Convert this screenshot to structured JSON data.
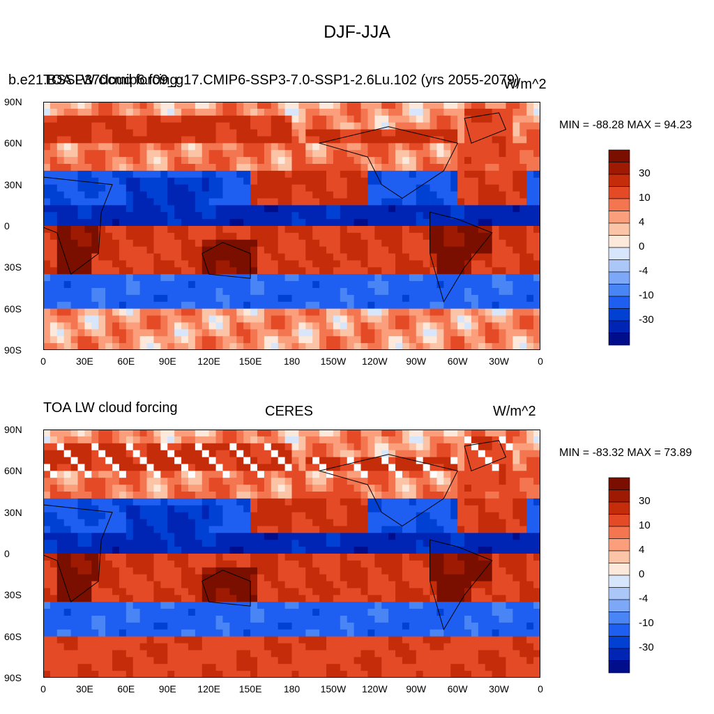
{
  "page_title": "DJF-JJA",
  "panels": [
    {
      "left_title": "b.e21.BSSP370cmip6.f09_g17.CMIP6-SSP3-7.0-SSP1-2.6Lu.102 (yrs 2055-2079)",
      "left_title_overlap": "TOA LW cloud forcing",
      "center_title": "",
      "units": "W/m^2",
      "stats": "MIN = -88.28 MAX =  94.23"
    },
    {
      "left_title": "TOA LW cloud forcing",
      "center_title": "CERES",
      "units": "W/m^2",
      "stats": "MIN = -83.32 MAX =  73.89"
    }
  ],
  "colors": {
    "palette": [
      "#000e8c",
      "#0024b4",
      "#0041d4",
      "#1e5ef0",
      "#4a85f5",
      "#7da8f8",
      "#abc7f8",
      "#d8e6fb",
      "#fde8dc",
      "#fcc4a7",
      "#fb9e7c",
      "#f37650",
      "#e44a26",
      "#c52c0a",
      "#9e1a03",
      "#7a0f00"
    ],
    "missing": "#ffffff"
  },
  "chart_data": [
    {
      "type": "heatmap",
      "title": "b.e21.BSSP370cmip6.f09_g17.CMIP6-SSP3-7.0-SSP1-2.6Lu.102 (yrs 2055-2079)",
      "variable": "TOA LW cloud forcing",
      "units": "W/m^2",
      "season_difference": "DJF-JJA",
      "x_ticks": [
        "0",
        "30E",
        "60E",
        "90E",
        "120E",
        "150E",
        "180",
        "150W",
        "120W",
        "90W",
        "60W",
        "30W",
        "0"
      ],
      "y_ticks": [
        "90N",
        "60N",
        "30N",
        "0",
        "30S",
        "60S",
        "90S"
      ],
      "xlim": [
        0,
        360
      ],
      "ylim": [
        -90,
        90
      ],
      "colorbar_levels": [
        "30",
        "10",
        "4",
        "0",
        "-4",
        "-10",
        "-30"
      ],
      "min": -88.28,
      "max": 94.23,
      "zonal_bands_approx": [
        {
          "lat_range": [
            60,
            90
          ],
          "sign": "positive (Eurasia/N. America land)"
        },
        {
          "lat_range": [
            15,
            60
          ],
          "sign": "negative over ocean, positive N. Pacific/N. Atlantic"
        },
        {
          "lat_range": [
            0,
            15
          ],
          "sign": "strongly negative (ITCZ)"
        },
        {
          "lat_range": [
            -40,
            0
          ],
          "sign": "strongly positive over S. Africa, Maritime Continent, S. America"
        },
        {
          "lat_range": [
            -65,
            -40
          ],
          "sign": "negative"
        },
        {
          "lat_range": [
            -90,
            -65
          ],
          "sign": "weakly positive"
        }
      ]
    },
    {
      "type": "heatmap",
      "title": "CERES",
      "variable": "TOA LW cloud forcing",
      "units": "W/m^2",
      "season_difference": "DJF-JJA",
      "x_ticks": [
        "0",
        "30E",
        "60E",
        "90E",
        "120E",
        "150E",
        "180",
        "150W",
        "120W",
        "90W",
        "60W",
        "30W",
        "0"
      ],
      "y_ticks": [
        "90N",
        "60N",
        "30N",
        "0",
        "30S",
        "60S",
        "90S"
      ],
      "xlim": [
        0,
        360
      ],
      "ylim": [
        -90,
        90
      ],
      "colorbar_levels": [
        "30",
        "10",
        "4",
        "0",
        "-4",
        "-10",
        "-30"
      ],
      "min": -83.32,
      "max": 73.89,
      "missing_data": "white patches over high-latitude land"
    }
  ]
}
